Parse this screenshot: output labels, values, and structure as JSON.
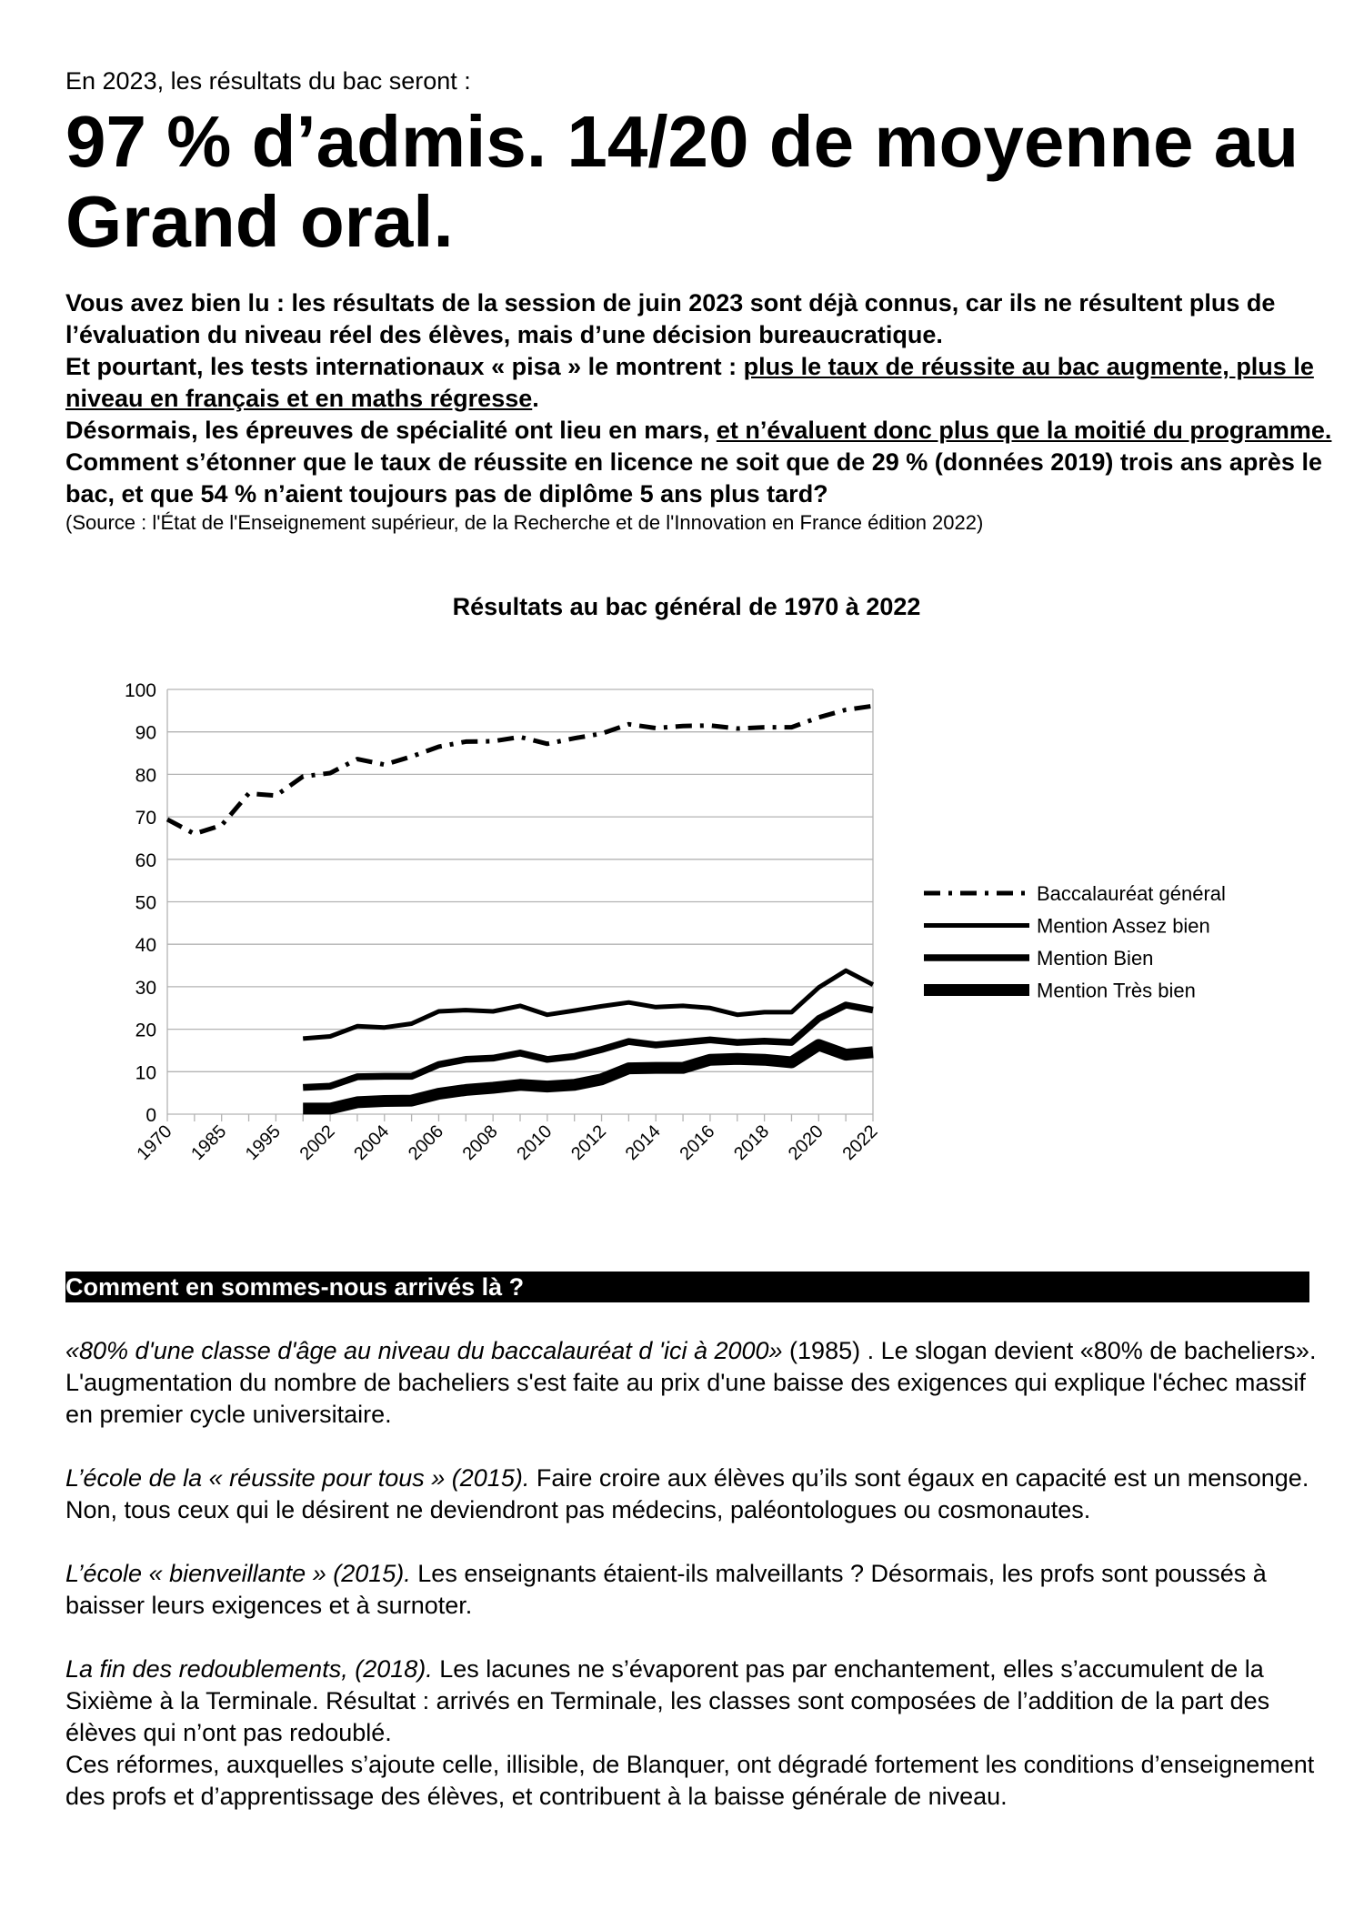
{
  "intro": "En 2023, les résultats du bac seront :",
  "headline": "97 % d’admis. 14/20 de moyenne au Grand oral.",
  "lead": {
    "p1": "Vous avez bien lu : les résultats de la session de juin 2023 sont déjà connus, car ils ne résultent plus de l’évaluation du niveau réel des élèves, mais d’une décision bureaucratique.",
    "p2a": "Et pourtant, les tests internationaux « pisa » le montrent : ",
    "p2u": "plus le taux de réussite au bac augmente, plus le niveau en français et en maths régresse",
    "p2b": ".",
    "p3a": "Désormais, les épreuves de spécialité ont lieu en mars, ",
    "p3u": "et n’évaluent donc plus que la moitié du programme.",
    "p4": "Comment s’étonner que le taux de réussite en licence ne soit que de 29 % (données 2019) trois ans après le bac, et que 54 % n’aient toujours pas de diplôme 5 ans plus tard?",
    "source": "(Source : l'État de l'Enseignement supérieur, de la Recherche et de l'Innovation en France édition 2022)"
  },
  "chart_data": {
    "type": "line",
    "title": "Résultats au bac général de 1970 à 2022",
    "categories": [
      "1970",
      "1980",
      "1985",
      "1990",
      "1995",
      "2000",
      "2002",
      "2003",
      "2004",
      "2005",
      "2006",
      "2007",
      "2008",
      "2009",
      "2010",
      "2011",
      "2012",
      "2013",
      "2014",
      "2015",
      "2016",
      "2017",
      "2018",
      "2019",
      "2020",
      "2021",
      "2022"
    ],
    "visible_tick_labels": [
      "1970",
      "1985",
      "1995",
      "2002",
      "2004",
      "2006",
      "2008",
      "2010",
      "2012",
      "2014",
      "2016",
      "2018",
      "2020",
      "2022"
    ],
    "ylim": [
      0,
      100
    ],
    "yticks": [
      0,
      10,
      20,
      30,
      40,
      50,
      60,
      70,
      80,
      90,
      100
    ],
    "grid": true,
    "legend": "right",
    "series": [
      {
        "name": "Baccalauréat général",
        "style": "dash-dot",
        "values": [
          69.4,
          66,
          68,
          75.5,
          75,
          79.5,
          80.3,
          83.6,
          82.3,
          84.2,
          86.5,
          87.7,
          87.8,
          88.8,
          87.2,
          88.5,
          89.6,
          91.8,
          90.9,
          91.4,
          91.5,
          90.8,
          91.1,
          91.1,
          93.4,
          95.2,
          96.1
        ]
      },
      {
        "name": "Mention Assez bien",
        "style": "solid-thin",
        "values": [
          null,
          null,
          null,
          null,
          null,
          17.8,
          18.3,
          20.7,
          20.4,
          21.3,
          24.2,
          24.5,
          24.2,
          25.5,
          23.4,
          24.4,
          25.4,
          26.3,
          25.2,
          25.5,
          25,
          23.4,
          24,
          24,
          29.8,
          33.8,
          30.5
        ]
      },
      {
        "name": "Mention Bien",
        "style": "solid-medium",
        "values": [
          null,
          null,
          null,
          null,
          null,
          6.3,
          6.6,
          8.8,
          8.9,
          8.9,
          11.7,
          12.9,
          13.2,
          14.4,
          12.9,
          13.6,
          15.2,
          17.1,
          16.3,
          16.9,
          17.5,
          16.9,
          17.2,
          16.9,
          22.5,
          25.7,
          24.5
        ]
      },
      {
        "name": "Mention Très bien",
        "style": "solid-thick",
        "values": [
          null,
          null,
          null,
          null,
          null,
          1.3,
          1.3,
          2.8,
          3.1,
          3.2,
          4.8,
          5.7,
          6.2,
          6.9,
          6.5,
          6.9,
          8.2,
          10.8,
          10.9,
          10.9,
          12.8,
          13,
          12.8,
          12.2,
          16.3,
          14,
          14.6
        ]
      }
    ],
    "colors": {
      "lines": "#000000",
      "grid": "#b3b3b3"
    }
  },
  "section": {
    "heading": "Comment en sommes-nous arrivés là ?",
    "paragraphs": [
      {
        "italic": "«80% d'une classe d'âge au niveau du baccalauréat d 'ici à 2000»",
        "text": " (1985) . Le slogan devient «80% de bacheliers». L'augmentation du nombre de bacheliers s'est faite au prix d'une baisse des exigences qui explique l'échec massif en premier cycle universitaire."
      },
      {
        "italic": "L’école de la « réussite pour tous » (2015).",
        "text": " Faire croire aux élèves qu’ils sont égaux en capacité est un mensonge. Non, tous ceux qui le désirent ne deviendront pas médecins, paléontologues ou cosmonautes."
      },
      {
        "italic": "L’école « bienveillante » (2015).",
        "text": " Les enseignants étaient-ils malveillants ? Désormais, les profs sont poussés à baisser leurs exigences et à surnoter."
      },
      {
        "italic": "La fin des redoublements, (2018).",
        "text": " Les lacunes ne s’évaporent pas par enchantement, elles s’accumulent de la Sixième à la Terminale. Résultat : arrivés en Terminale, les classes sont composées de l’addition de la part des élèves qui n’ont pas redoublé.",
        "text2": "Ces réformes, auxquelles s’ajoute celle, illisible, de Blanquer, ont dégradé fortement les conditions d’enseignement des profs et d’apprentissage des élèves, et contribuent à la baisse générale de niveau."
      }
    ]
  }
}
